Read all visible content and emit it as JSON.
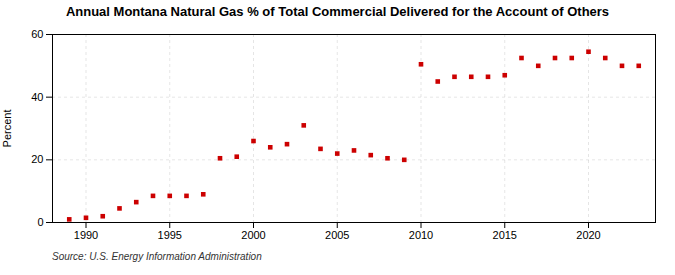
{
  "chart_data": {
    "type": "scatter",
    "title": "Annual Montana Natural Gas % of Total Commercial Delivered for the Account of Others",
    "ylabel": "Percent",
    "source": "Source: U.S. Energy Information Administration",
    "x": [
      1989,
      1990,
      1991,
      1992,
      1993,
      1994,
      1995,
      1996,
      1997,
      1998,
      1999,
      2000,
      2001,
      2002,
      2003,
      2004,
      2005,
      2006,
      2007,
      2008,
      2009,
      2010,
      2011,
      2012,
      2013,
      2014,
      2015,
      2016,
      2017,
      2018,
      2019,
      2020,
      2021,
      2022,
      2023
    ],
    "values": [
      1.0,
      1.5,
      2.0,
      4.5,
      6.5,
      8.5,
      8.5,
      8.5,
      9.0,
      20.5,
      21.0,
      26.0,
      24.0,
      25.0,
      31.0,
      23.5,
      22.0,
      23.0,
      21.5,
      20.5,
      20.0,
      50.5,
      45.0,
      46.5,
      46.5,
      46.5,
      47.0,
      52.5,
      50.0,
      52.5,
      52.5,
      54.5,
      52.5,
      50.0,
      50.0
    ],
    "color": "#cc0000",
    "marker": "square",
    "xlim": [
      1988,
      2024
    ],
    "xticks": [
      1990,
      1995,
      2000,
      2005,
      2010,
      2015,
      2020
    ],
    "ylim": [
      0,
      60
    ],
    "yticks": [
      0,
      20,
      40,
      60
    ],
    "grid": true
  }
}
